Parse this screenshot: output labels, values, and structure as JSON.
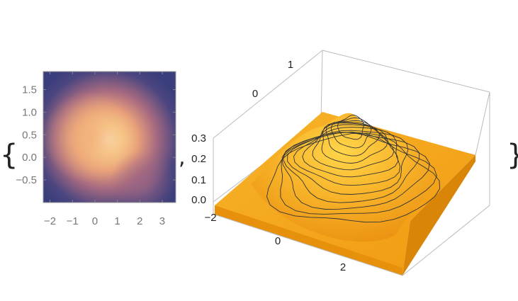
{
  "chart_data": [
    {
      "type": "heatmap",
      "title": "",
      "xlabel": "",
      "ylabel": "",
      "xlim": [
        -2.3,
        3.6
      ],
      "ylim": [
        -1.0,
        1.9
      ],
      "x_ticks": [
        "−2",
        "−1",
        "0",
        "1",
        "2",
        "3"
      ],
      "y_ticks": [
        "1.5",
        "1.0",
        "0.5",
        "0.0",
        "−0.5"
      ],
      "colormap": [
        "#3b3e7c",
        "#6b4f86",
        "#c9857e",
        "#f5b978",
        "#fff2cc"
      ],
      "peak": {
        "x": 0.6,
        "y": 0.35
      }
    },
    {
      "type": "surface",
      "title": "",
      "x_ticks": [
        "−2",
        "0",
        "2"
      ],
      "y_ticks": [
        "0",
        "1"
      ],
      "z_ticks": [
        "0.3",
        "0.2",
        "0.1",
        "0.0"
      ],
      "zlim": [
        0.0,
        0.3
      ],
      "surface_color": "#f7a81c",
      "contour_color": "#333333",
      "contour_count": 12
    }
  ],
  "list": {
    "open": "{",
    "separator": ",",
    "close": "}"
  }
}
